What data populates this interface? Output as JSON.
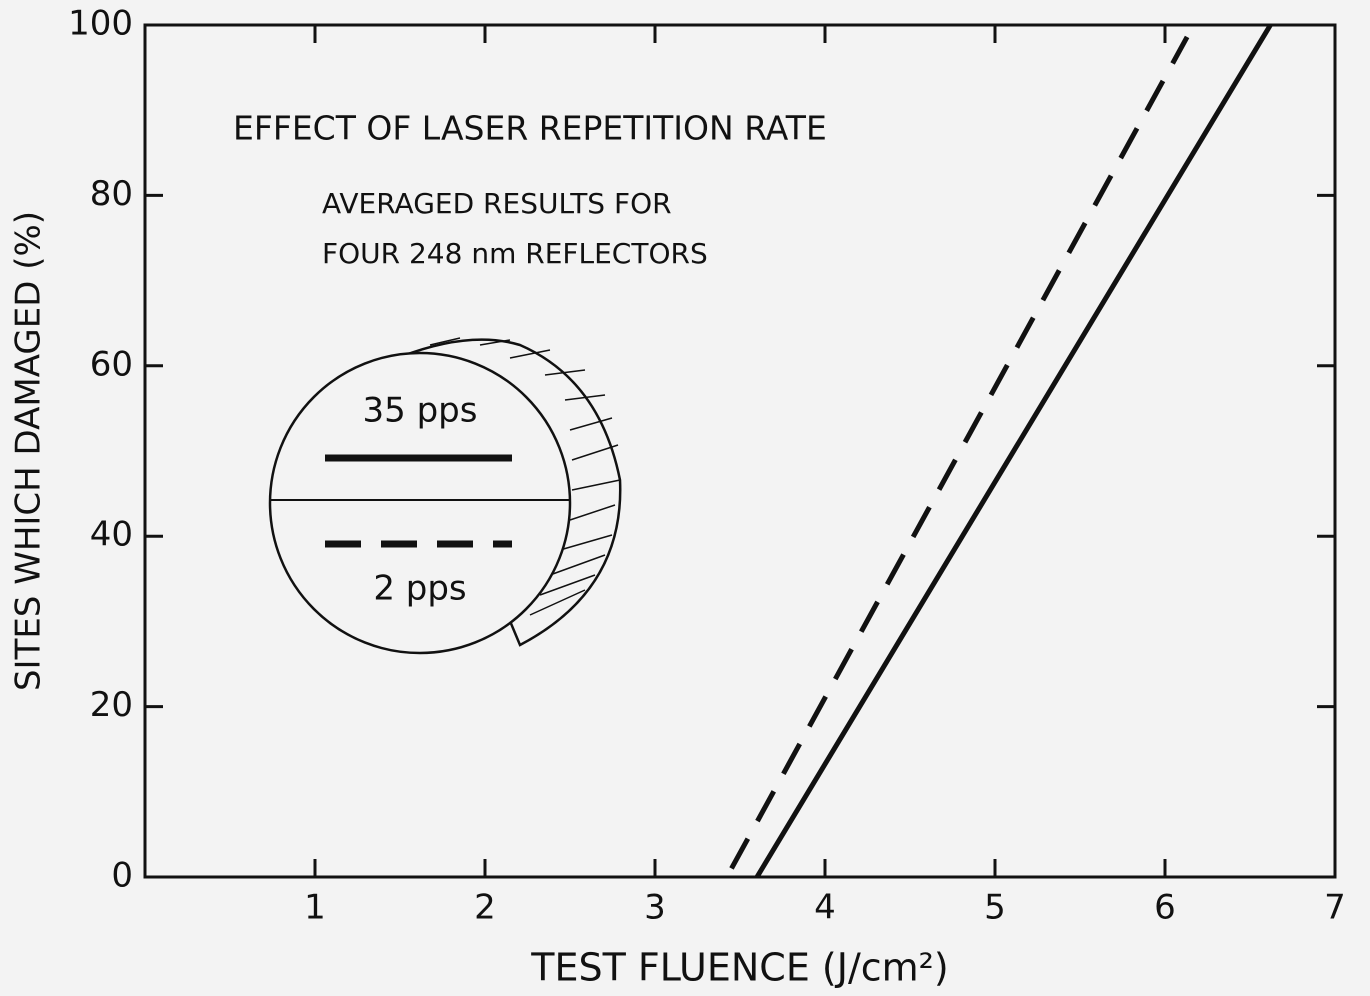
{
  "chart_data": {
    "type": "line",
    "title": "EFFECT OF LASER REPETITION RATE",
    "subtitle": [
      "AVERAGED RESULTS FOR",
      "FOUR 248 nm REFLECTORS"
    ],
    "x_label": "TEST FLUENCE (J/cm²)",
    "y_label": "SITES WHICH DAMAGED (%)",
    "xlim": [
      0,
      7
    ],
    "xticks": [
      1,
      2,
      3,
      4,
      5,
      6,
      7
    ],
    "ylim": [
      0,
      100
    ],
    "yticks": [
      0,
      20,
      40,
      60,
      80,
      100
    ],
    "grid": false,
    "series": [
      {
        "name": "35 pps",
        "color": "#111111",
        "line_style": "solid",
        "x": [
          3.6,
          6.62
        ],
        "values": [
          0,
          100
        ]
      },
      {
        "name": "2 pps",
        "color": "#111111",
        "line_style": "dashed",
        "x": [
          3.45,
          6.13
        ],
        "values": [
          1,
          98.6
        ]
      }
    ]
  }
}
